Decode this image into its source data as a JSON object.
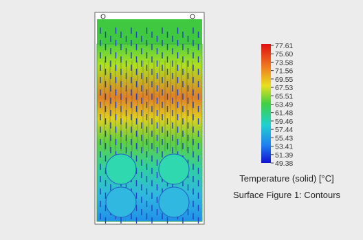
{
  "legend": {
    "ticks": [
      "77.61",
      "75.60",
      "73.58",
      "71.56",
      "69.55",
      "67.53",
      "65.51",
      "63.49",
      "61.48",
      "59.46",
      "57.44",
      "55.43",
      "53.41",
      "51.39",
      "49.38"
    ],
    "title": "Temperature (solid) [°C]"
  },
  "caption": "Surface Figure 1:  Contours"
}
